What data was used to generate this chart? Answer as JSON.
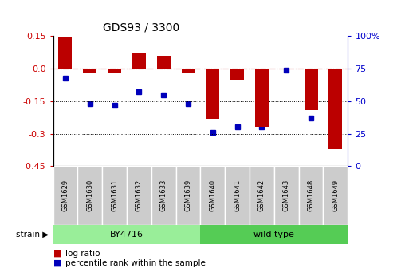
{
  "title": "GDS93 / 3300",
  "samples": [
    "GSM1629",
    "GSM1630",
    "GSM1631",
    "GSM1632",
    "GSM1633",
    "GSM1639",
    "GSM1640",
    "GSM1641",
    "GSM1642",
    "GSM1643",
    "GSM1648",
    "GSM1649"
  ],
  "log_ratio": [
    0.143,
    -0.02,
    -0.02,
    0.07,
    0.06,
    -0.02,
    -0.23,
    -0.05,
    -0.27,
    -0.005,
    -0.19,
    -0.37
  ],
  "percentile_rank": [
    68,
    48,
    47,
    57,
    55,
    48,
    26,
    30,
    30,
    74,
    37,
    25
  ],
  "bar_color": "#bb0000",
  "point_color": "#0000bb",
  "ylim_left": [
    -0.45,
    0.15
  ],
  "ylim_right": [
    0,
    100
  ],
  "yticks_left": [
    -0.45,
    -0.3,
    -0.15,
    0.0,
    0.15
  ],
  "yticks_right": [
    0,
    25,
    50,
    75,
    100
  ],
  "hline_y": 0.0,
  "dotted_lines": [
    -0.15,
    -0.3
  ],
  "strain_groups": [
    {
      "label": "BY4716",
      "start": 0,
      "end": 6,
      "color": "#99ee99"
    },
    {
      "label": "wild type",
      "start": 6,
      "end": 12,
      "color": "#55cc55"
    }
  ],
  "legend_items": [
    {
      "label": "log ratio",
      "color": "#bb0000"
    },
    {
      "label": "percentile rank within the sample",
      "color": "#0000bb"
    }
  ],
  "bar_width": 0.55,
  "background_color": "#ffffff",
  "tick_label_color_left": "#cc0000",
  "tick_label_color_right": "#0000cc",
  "title_fontsize": 10,
  "tick_fontsize": 8,
  "sample_fontsize": 6,
  "legend_fontsize": 7.5,
  "strain_label_fontsize": 8,
  "gray_box_color": "#cccccc"
}
